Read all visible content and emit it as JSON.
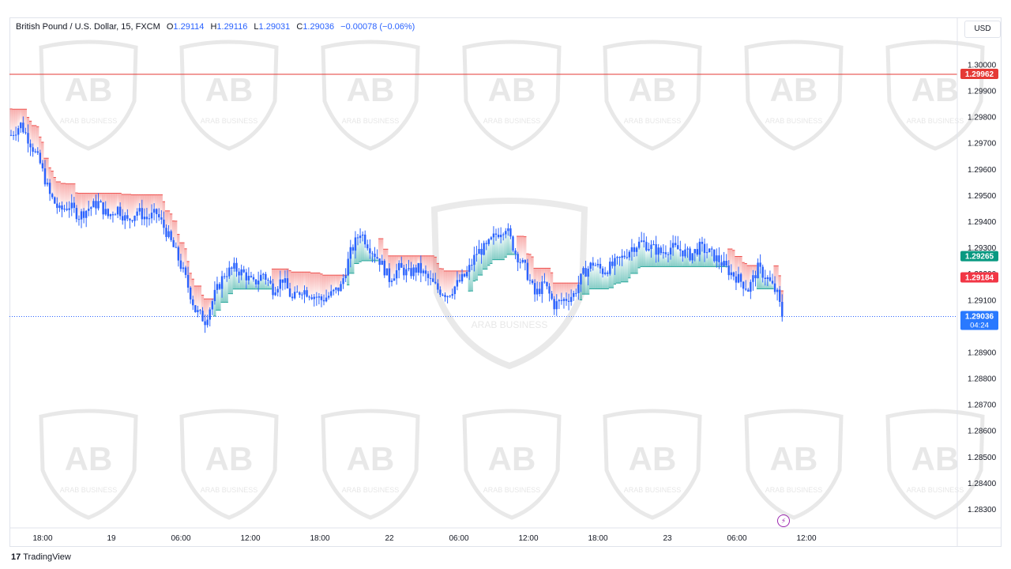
{
  "header": {
    "symbol": "British Pound / U.S. Dollar, 15, FXCM",
    "open_label": "O",
    "open": "1.29114",
    "high_label": "H",
    "high": "1.29116",
    "low_label": "L",
    "low": "1.29031",
    "close_label": "C",
    "close": "1.29036",
    "change": "−0.00078 (−0.06%)"
  },
  "currency_button": "USD",
  "footer": {
    "logo_mark": "17",
    "logo_text": "TradingView"
  },
  "watermark_text": "ARAB BUSINESS",
  "colors": {
    "up": "#26a69a",
    "down": "#ef5350",
    "candle": "#2962ff",
    "resistance": "#e53935",
    "last": "#2979ff"
  },
  "chart_data": {
    "type": "candlestick",
    "ylim": [
      1.2826,
      1.301
    ],
    "y_ticks": [
      "1.28300",
      "1.28400",
      "1.28500",
      "1.28600",
      "1.28700",
      "1.28800",
      "1.28900",
      "1.29000",
      "1.29100",
      "1.29200",
      "1.29300",
      "1.29400",
      "1.29500",
      "1.29600",
      "1.29700",
      "1.29800",
      "1.29900",
      "1.30000"
    ],
    "x_ticks": [
      "18:00",
      "19",
      "06:00",
      "12:00",
      "18:00",
      "22",
      "06:00",
      "12:00",
      "18:00",
      "23",
      "06:00",
      "12:00"
    ],
    "horizontal_line": {
      "value": 1.29962,
      "label": "1.29962"
    },
    "price_labels": [
      {
        "value": 1.29265,
        "label": "1.29265",
        "kind": "up"
      },
      {
        "value": 1.29184,
        "label": "1.29184",
        "kind": "down"
      }
    ],
    "last_price": {
      "value": 1.29036,
      "label": "1.29036",
      "countdown": "04:24"
    },
    "close_path": [
      [
        0,
        1.2973
      ],
      [
        4,
        1.2977
      ],
      [
        8,
        1.297
      ],
      [
        12,
        1.2962
      ],
      [
        16,
        1.295
      ],
      [
        20,
        1.2944
      ],
      [
        24,
        1.2946
      ],
      [
        28,
        1.2942
      ],
      [
        32,
        1.2945
      ],
      [
        36,
        1.2947
      ],
      [
        40,
        1.2942
      ],
      [
        44,
        1.2945
      ],
      [
        48,
        1.294
      ],
      [
        52,
        1.2944
      ],
      [
        56,
        1.2941
      ],
      [
        60,
        1.2943
      ],
      [
        64,
        1.2936
      ],
      [
        68,
        1.2928
      ],
      [
        72,
        1.2918
      ],
      [
        76,
        1.2906
      ],
      [
        80,
        1.2902
      ],
      [
        84,
        1.2912
      ],
      [
        88,
        1.292
      ],
      [
        92,
        1.2922
      ],
      [
        96,
        1.292
      ],
      [
        100,
        1.2916
      ],
      [
        104,
        1.292
      ],
      [
        108,
        1.2914
      ],
      [
        112,
        1.2918
      ],
      [
        116,
        1.291
      ],
      [
        120,
        1.2914
      ],
      [
        124,
        1.2912
      ],
      [
        128,
        1.291
      ],
      [
        132,
        1.2912
      ],
      [
        136,
        1.2915
      ],
      [
        140,
        1.2928
      ],
      [
        144,
        1.2936
      ],
      [
        148,
        1.293
      ],
      [
        152,
        1.2925
      ],
      [
        156,
        1.2918
      ],
      [
        160,
        1.2922
      ],
      [
        164,
        1.292
      ],
      [
        168,
        1.2922
      ],
      [
        172,
        1.2918
      ],
      [
        176,
        1.2914
      ],
      [
        180,
        1.2912
      ],
      [
        184,
        1.2916
      ],
      [
        188,
        1.292
      ],
      [
        192,
        1.2928
      ],
      [
        196,
        1.293
      ],
      [
        200,
        1.2935
      ],
      [
        204,
        1.2938
      ],
      [
        208,
        1.2928
      ],
      [
        212,
        1.2922
      ],
      [
        216,
        1.2912
      ],
      [
        220,
        1.2916
      ],
      [
        224,
        1.2908
      ],
      [
        228,
        1.291
      ],
      [
        232,
        1.2912
      ],
      [
        236,
        1.292
      ],
      [
        240,
        1.2924
      ],
      [
        244,
        1.2921
      ],
      [
        248,
        1.2923
      ],
      [
        252,
        1.2926
      ],
      [
        256,
        1.293
      ],
      [
        260,
        1.2932
      ],
      [
        264,
        1.293
      ],
      [
        268,
        1.2928
      ],
      [
        272,
        1.293
      ],
      [
        276,
        1.2929
      ],
      [
        280,
        1.2927
      ],
      [
        284,
        1.293
      ],
      [
        288,
        1.2928
      ],
      [
        292,
        1.2925
      ],
      [
        296,
        1.2921
      ],
      [
        300,
        1.2918
      ],
      [
        304,
        1.2914
      ],
      [
        308,
        1.2922
      ],
      [
        312,
        1.2918
      ],
      [
        316,
        1.2912
      ],
      [
        318,
        1.2904
      ]
    ],
    "watermark_badges": 14
  }
}
